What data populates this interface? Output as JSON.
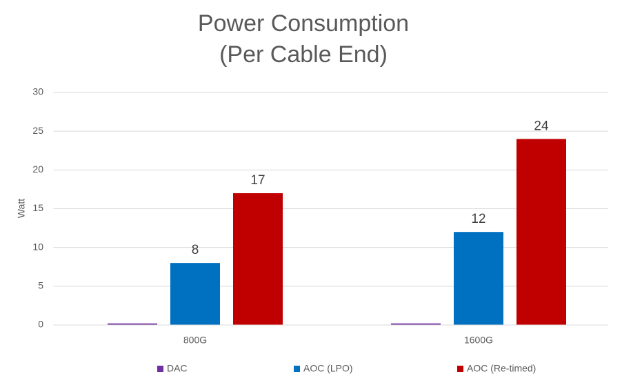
{
  "chart_data": {
    "type": "bar",
    "title": "Power Consumption",
    "subtitle": "(Per Cable End)",
    "y_label": "Watt",
    "categories": [
      "800G",
      "1600G"
    ],
    "series": [
      {
        "name": "DAC",
        "color": "#7030a0",
        "values": [
          0.2,
          0.2
        ],
        "data_labels": false
      },
      {
        "name": "AOC (LPO)",
        "color": "#0070c0",
        "values": [
          8,
          12
        ],
        "data_labels": true
      },
      {
        "name": "AOC (Re-timed)",
        "color": "#c00000",
        "values": [
          17,
          24
        ],
        "data_labels": true
      }
    ],
    "ylim": [
      0,
      30
    ],
    "yticks": [
      0,
      5,
      10,
      15,
      20,
      25,
      30
    ],
    "grid": true,
    "legend": "bottom"
  }
}
